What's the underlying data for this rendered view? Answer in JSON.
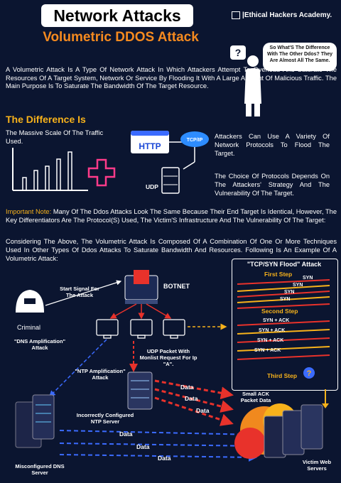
{
  "header": {
    "title": "Network Attacks",
    "subtitle": "Volumetric DDOS Attack",
    "brand": "Ethical Hackers Academy."
  },
  "bubble_text": "So What'S The Difference With The Other Ddos? They Are Almost All The Same.",
  "intro": "A Volumetric Attack Is A Type Of Network Attack In Which Attackers Attempt To Overload And Saturate The Resources Of A Target System, Network Or Service By Flooding It With A Large Amount Of Malicious Traffic. The Main Purpose Is To Saturate The Bandwidth Of The Target Resource.",
  "difference": {
    "heading": "The Difference Is",
    "scale_text": "The Massive Scale Of The Traffic Used.",
    "protocols_text": "Attackers Can Use A Variety Of Network Protocols To Flood The Target.",
    "choice_text": "The Choice Of Protocols Depends On The Attackers' Strategy And The Vulnerability Of The Target.",
    "http_label": "HTTP",
    "tcpip_label": "TCP/IP",
    "udp_label": "UDP"
  },
  "important_note": {
    "label": "Important Note:",
    "text": " Many Of The Ddos Attacks Look The Same Because Their End Target Is Identical, However, The Key Differentiators Are The Protocol(S) Used, The Victim'S Infrastructure And The Vulnerability Of The Target:"
  },
  "considering": "Considering The Above, The Volumetric Attack Is Composed Of A Combination Of One Or More Techniques Used In Other Types Of Ddos Attacks To Saturate Bandwidth And Resources. Following Is An Example Of A Volumetric Attack:",
  "diagram": {
    "start_signal": "Start Signal For The Attack",
    "botnet": "BOTNET",
    "criminal": "Criminal",
    "dns_amp": "\"DNS Amplification\" Attack",
    "udp_packet": "UDP Packet With Monlist Request For Ip \"A\".",
    "ntp_amp": "\"NTP Amplification\" Attack",
    "ntp_server": "Incorrectly Configured NTP Server",
    "dns_server": "Misconfigured DNS Server",
    "small_ack": "Small ACK Packet Data",
    "victims": "Victim Web Servers",
    "data_word": "Data"
  },
  "tcp_flood": {
    "title": "\"TCP/SYN Flood\" Attack",
    "first_step": "First Step",
    "second_step": "Second Step",
    "third_step": "Third Step",
    "syn": "SYN",
    "synack": "SYN + ACK"
  },
  "colors": {
    "background": "#0b1530",
    "accent_orange": "#f58a1f",
    "accent_yellow": "#f7b21b",
    "arrow_red": "#e8322b",
    "arrow_blue": "#3b6bff"
  }
}
